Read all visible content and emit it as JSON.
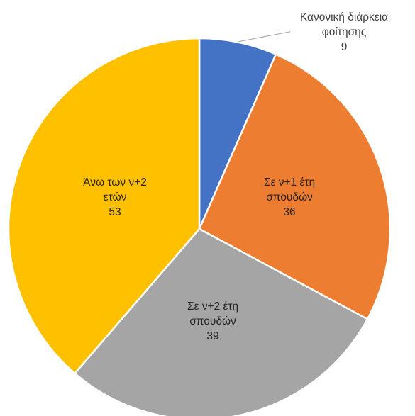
{
  "chart_data": {
    "type": "pie",
    "slices": [
      {
        "line1": "Κανονική διάρκεια",
        "line2": "φοίτησης",
        "value": 9,
        "color": "#4472C4"
      },
      {
        "line1": "Σε ν+1 έτη",
        "line2": "σπουδών",
        "value": 36,
        "color": "#ED7D31"
      },
      {
        "line1": "Σε ν+2 έτη",
        "line2": "σπουδών",
        "value": 39,
        "color": "#A5A5A5"
      },
      {
        "line1": "Άνω των ν+2",
        "line2": "ετών",
        "value": 53,
        "color": "#FFC000"
      }
    ],
    "start_angle": "12 o'clock",
    "direction": "clockwise",
    "legend": "none"
  }
}
